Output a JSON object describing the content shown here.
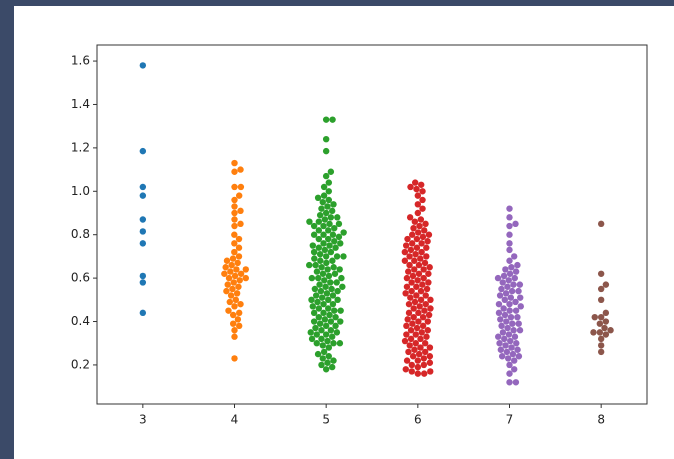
{
  "chart_data": {
    "type": "swarm",
    "categories": [
      "3",
      "4",
      "5",
      "6",
      "7",
      "8"
    ],
    "colors": [
      "#1f77b4",
      "#ff7f0e",
      "#2ca02c",
      "#d62728",
      "#9467bd",
      "#8c564b"
    ],
    "values": [
      [
        1.58,
        1.185,
        1.02,
        0.98,
        0.87,
        0.815,
        0.76,
        0.61,
        0.58,
        0.44
      ],
      [
        1.13,
        1.1,
        1.09,
        1.02,
        1.02,
        0.98,
        0.96,
        0.93,
        0.91,
        0.9,
        0.87,
        0.85,
        0.84,
        0.8,
        0.78,
        0.76,
        0.74,
        0.72,
        0.7,
        0.69,
        0.68,
        0.67,
        0.66,
        0.65,
        0.64,
        0.64,
        0.63,
        0.62,
        0.62,
        0.61,
        0.6,
        0.6,
        0.59,
        0.58,
        0.57,
        0.56,
        0.55,
        0.54,
        0.53,
        0.52,
        0.5,
        0.49,
        0.48,
        0.47,
        0.45,
        0.44,
        0.43,
        0.41,
        0.39,
        0.38,
        0.36,
        0.33,
        0.23
      ],
      [
        1.33,
        1.33,
        1.24,
        1.185,
        1.09,
        1.07,
        1.04,
        1.02,
        1.0,
        0.98,
        0.97,
        0.96,
        0.95,
        0.94,
        0.93,
        0.92,
        0.91,
        0.9,
        0.89,
        0.88,
        0.87,
        0.86,
        0.85,
        0.84,
        0.83,
        0.82,
        0.81,
        0.8,
        0.79,
        0.78,
        0.77,
        0.76,
        0.75,
        0.74,
        0.73,
        0.72,
        0.71,
        0.7,
        0.69,
        0.68,
        0.67,
        0.66,
        0.65,
        0.64,
        0.63,
        0.62,
        0.61,
        0.6,
        0.59,
        0.58,
        0.57,
        0.56,
        0.55,
        0.54,
        0.53,
        0.52,
        0.51,
        0.5,
        0.49,
        0.48,
        0.47,
        0.46,
        0.45,
        0.44,
        0.43,
        0.42,
        0.41,
        0.4,
        0.39,
        0.38,
        0.37,
        0.36,
        0.35,
        0.34,
        0.33,
        0.32,
        0.31,
        0.3,
        0.29,
        0.28,
        0.88,
        0.86,
        0.84,
        0.82,
        0.8,
        0.78,
        0.76,
        0.74,
        0.72,
        0.7,
        0.68,
        0.66,
        0.64,
        0.62,
        0.6,
        0.58,
        0.56,
        0.54,
        0.52,
        0.5,
        0.48,
        0.46,
        0.44,
        0.42,
        0.4,
        0.38,
        0.36,
        0.34,
        0.32,
        0.3,
        0.85,
        0.8,
        0.75,
        0.7,
        0.65,
        0.6,
        0.55,
        0.5,
        0.45,
        0.4,
        0.35,
        0.3,
        0.26,
        0.25,
        0.24,
        0.23,
        0.22,
        0.21,
        0.2,
        0.19,
        0.18
      ],
      [
        1.04,
        1.03,
        1.02,
        1.01,
        1.0,
        0.98,
        0.96,
        0.94,
        0.92,
        0.9,
        0.88,
        0.87,
        0.86,
        0.85,
        0.84,
        0.83,
        0.82,
        0.81,
        0.8,
        0.79,
        0.78,
        0.77,
        0.76,
        0.75,
        0.74,
        0.73,
        0.72,
        0.71,
        0.7,
        0.69,
        0.68,
        0.67,
        0.66,
        0.65,
        0.64,
        0.63,
        0.62,
        0.61,
        0.6,
        0.59,
        0.58,
        0.57,
        0.56,
        0.55,
        0.54,
        0.53,
        0.52,
        0.51,
        0.5,
        0.49,
        0.48,
        0.47,
        0.46,
        0.45,
        0.44,
        0.43,
        0.42,
        0.41,
        0.4,
        0.39,
        0.38,
        0.37,
        0.36,
        0.35,
        0.34,
        0.33,
        0.32,
        0.31,
        0.3,
        0.29,
        0.28,
        0.27,
        0.26,
        0.25,
        0.24,
        0.23,
        0.22,
        0.21,
        0.2,
        0.19,
        0.18,
        0.8,
        0.78,
        0.76,
        0.74,
        0.72,
        0.7,
        0.68,
        0.66,
        0.64,
        0.62,
        0.6,
        0.58,
        0.56,
        0.54,
        0.52,
        0.5,
        0.48,
        0.46,
        0.44,
        0.42,
        0.4,
        0.38,
        0.36,
        0.34,
        0.32,
        0.3,
        0.28,
        0.26,
        0.24,
        0.22,
        0.2,
        0.17,
        0.16,
        0.16,
        0.17
      ],
      [
        0.92,
        0.88,
        0.85,
        0.84,
        0.8,
        0.76,
        0.73,
        0.7,
        0.68,
        0.66,
        0.65,
        0.64,
        0.63,
        0.62,
        0.61,
        0.6,
        0.59,
        0.58,
        0.57,
        0.56,
        0.55,
        0.54,
        0.53,
        0.52,
        0.51,
        0.5,
        0.49,
        0.48,
        0.47,
        0.46,
        0.45,
        0.44,
        0.43,
        0.42,
        0.41,
        0.4,
        0.39,
        0.38,
        0.37,
        0.36,
        0.35,
        0.34,
        0.33,
        0.32,
        0.31,
        0.3,
        0.29,
        0.28,
        0.27,
        0.26,
        0.25,
        0.24,
        0.23,
        0.22,
        0.6,
        0.57,
        0.54,
        0.51,
        0.48,
        0.45,
        0.42,
        0.39,
        0.36,
        0.33,
        0.3,
        0.27,
        0.24,
        0.2,
        0.18,
        0.16,
        0.12,
        0.12
      ],
      [
        0.85,
        0.62,
        0.57,
        0.55,
        0.5,
        0.44,
        0.42,
        0.42,
        0.4,
        0.39,
        0.37,
        0.36,
        0.35,
        0.35,
        0.34,
        0.32,
        0.29,
        0.26
      ]
    ],
    "ylim": [
      0.02,
      1.674
    ],
    "yticks": [
      0.2,
      0.4,
      0.6,
      0.8,
      {
        "value": 1,
        "label": "1.0"
      },
      1.2,
      1.4,
      1.6
    ]
  }
}
